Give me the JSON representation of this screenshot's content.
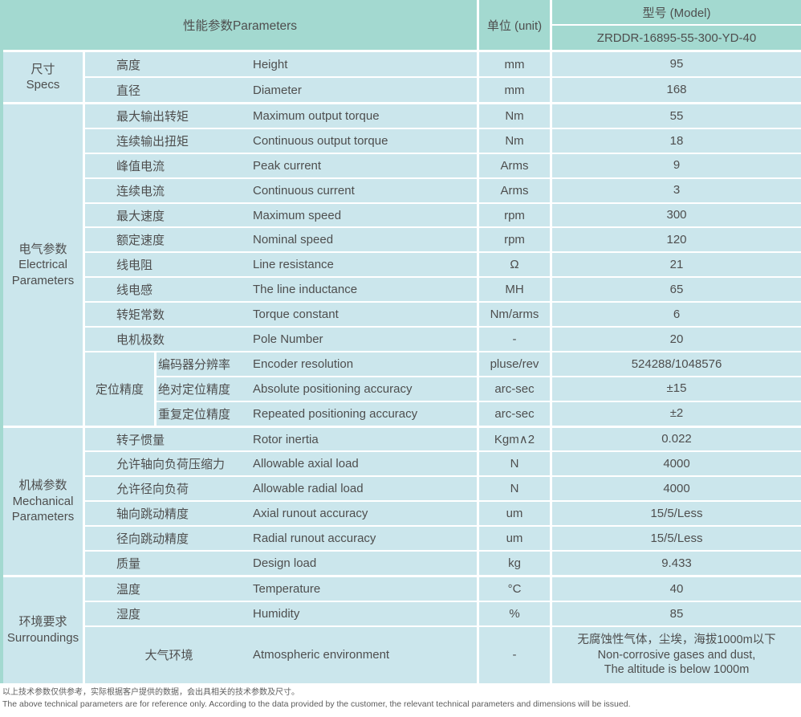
{
  "colors": {
    "teal": "#a3d9d0",
    "cell": "#cbe6ec",
    "text": "#4e4e4e",
    "footer_text": "#5d5d5d"
  },
  "header": {
    "parameters_label": "性能参数Parameters",
    "unit_label": "单位 (unit)",
    "model_label": "型号 (Model)",
    "model_value": "ZRDDR-16895-55-300-YD-40"
  },
  "sections": [
    {
      "label": "尺寸\nSpecs",
      "rows": [
        {
          "cn": "高度",
          "en": "Height",
          "unit": "mm",
          "value": "95"
        },
        {
          "cn": "直径",
          "en": "Diameter",
          "unit": "mm",
          "value": "168"
        }
      ]
    },
    {
      "label": "电气参数\nElectrical\nParameters",
      "rows": [
        {
          "cn": "最大输出转矩",
          "en": "Maximum output torque",
          "unit": "Nm",
          "value": "55"
        },
        {
          "cn": "连续输出扭矩",
          "en": "Continuous output torque",
          "unit": "Nm",
          "value": "18"
        },
        {
          "cn": "峰值电流",
          "en": "Peak current",
          "unit": "Arms",
          "value": "9"
        },
        {
          "cn": "连续电流",
          "en": "Continuous current",
          "unit": "Arms",
          "value": "3"
        },
        {
          "cn": "最大速度",
          "en": "Maximum speed",
          "unit": "rpm",
          "value": "300"
        },
        {
          "cn": "额定速度",
          "en": "Nominal speed",
          "unit": "rpm",
          "value": "120"
        },
        {
          "cn": "线电阻",
          "en": "Line resistance",
          "unit": "Ω",
          "value": "21"
        },
        {
          "cn": "线电感",
          "en": "The line inductance",
          "unit": "MH",
          "value": "65"
        },
        {
          "cn": "转矩常数",
          "en": "Torque constant",
          "unit": "Nm/arms",
          "value": "6"
        },
        {
          "cn": "电机极数",
          "en": "Pole Number",
          "unit": "-",
          "value": "20"
        }
      ],
      "subgroup": {
        "label": "定位精度",
        "rows": [
          {
            "cn": "编码器分辨率",
            "en": "Encoder resolution",
            "unit": "pluse/rev",
            "value": "524288/1048576"
          },
          {
            "cn": "绝对定位精度",
            "en": "Absolute positioning accuracy",
            "unit": "arc-sec",
            "value": "±15"
          },
          {
            "cn": "重复定位精度",
            "en": "Repeated positioning accuracy",
            "unit": "arc-sec",
            "value": "±2"
          }
        ]
      }
    },
    {
      "label": "机械参数\nMechanical\nParameters",
      "rows": [
        {
          "cn": "转子惯量",
          "en": "Rotor inertia",
          "unit": "Kgm∧2",
          "value": "0.022"
        },
        {
          "cn": "允许轴向负荷压缩力",
          "en": "Allowable axial load",
          "unit": "N",
          "value": "4000"
        },
        {
          "cn": "允许径向负荷",
          "en": "Allowable radial load",
          "unit": "N",
          "value": "4000"
        },
        {
          "cn": "轴向跳动精度",
          "en": "Axial runout accuracy",
          "unit": "um",
          "value": "15/5/Less"
        },
        {
          "cn": "径向跳动精度",
          "en": "Radial runout accuracy",
          "unit": "um",
          "value": "15/5/Less"
        },
        {
          "cn": "质量",
          "en": "Design load",
          "unit": "kg",
          "value": "9.433"
        }
      ]
    },
    {
      "label": "环境要求\nSurroundings",
      "rows": [
        {
          "cn": "温度",
          "en": "Temperature",
          "unit": "°C",
          "value": "40"
        },
        {
          "cn": "湿度",
          "en": "Humidity",
          "unit": "%",
          "value": "85"
        }
      ],
      "atmos": {
        "cn": "大气环境",
        "en": "Atmospheric environment",
        "unit": "-",
        "value": "无腐蚀性气体，尘埃，海拔1000m以下\nNon-corrosive gases and dust,\nThe altitude is below 1000m"
      }
    }
  ],
  "footer": {
    "line1_zh": "以上技术参数仅供参考，实际根据客户提供的数据，会出具相关的技术参数及尺寸。",
    "line2_en": "The above technical parameters are for reference only. According to the data provided by the customer, the relevant technical parameters and dimensions will be issued."
  }
}
